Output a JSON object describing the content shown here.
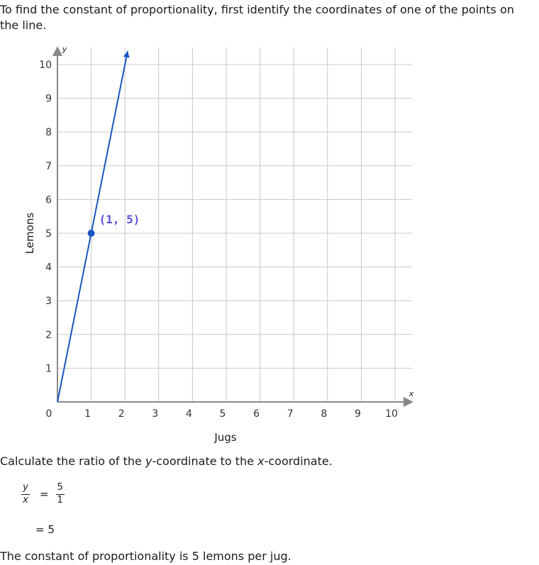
{
  "intro_text": "To find the constant of proportionality, first identify the coordinates of one of the points on the line.",
  "calc_text": {
    "prefix": "Calculate the ratio of the ",
    "y_var": "y",
    "middle": "-coordinate to the ",
    "x_var": "x",
    "suffix": "-coordinate."
  },
  "equation": {
    "lhs_num": "y",
    "lhs_den": "x",
    "equals": "=",
    "rhs_num": "5",
    "rhs_den": "1",
    "result": "= 5"
  },
  "conclusion_text": "The constant of proportionality is 5 lemons per jug.",
  "colors": {
    "line": "#1a56c4",
    "point": "#1a56c4",
    "point_label": "#5a4fe0",
    "grid": "#c8c8c8",
    "axis": "#888888"
  },
  "chart_data": {
    "type": "line",
    "xlabel": "Jugs",
    "ylabel": "Lemons",
    "x_axis_letter": "x",
    "y_axis_letter": "y",
    "xlim": [
      0,
      10
    ],
    "ylim": [
      0,
      10
    ],
    "x_ticks": [
      "0",
      "1",
      "2",
      "3",
      "4",
      "5",
      "6",
      "7",
      "8",
      "9",
      "10"
    ],
    "y_ticks": [
      "1",
      "2",
      "3",
      "4",
      "5",
      "6",
      "7",
      "8",
      "9",
      "10"
    ],
    "grid": true,
    "series": [
      {
        "x": [
          0,
          2.08
        ],
        "y": [
          0,
          10.4
        ],
        "slope": 5
      }
    ],
    "points": [
      {
        "x": 1,
        "y": 5,
        "label": "(1, 5)"
      }
    ]
  }
}
